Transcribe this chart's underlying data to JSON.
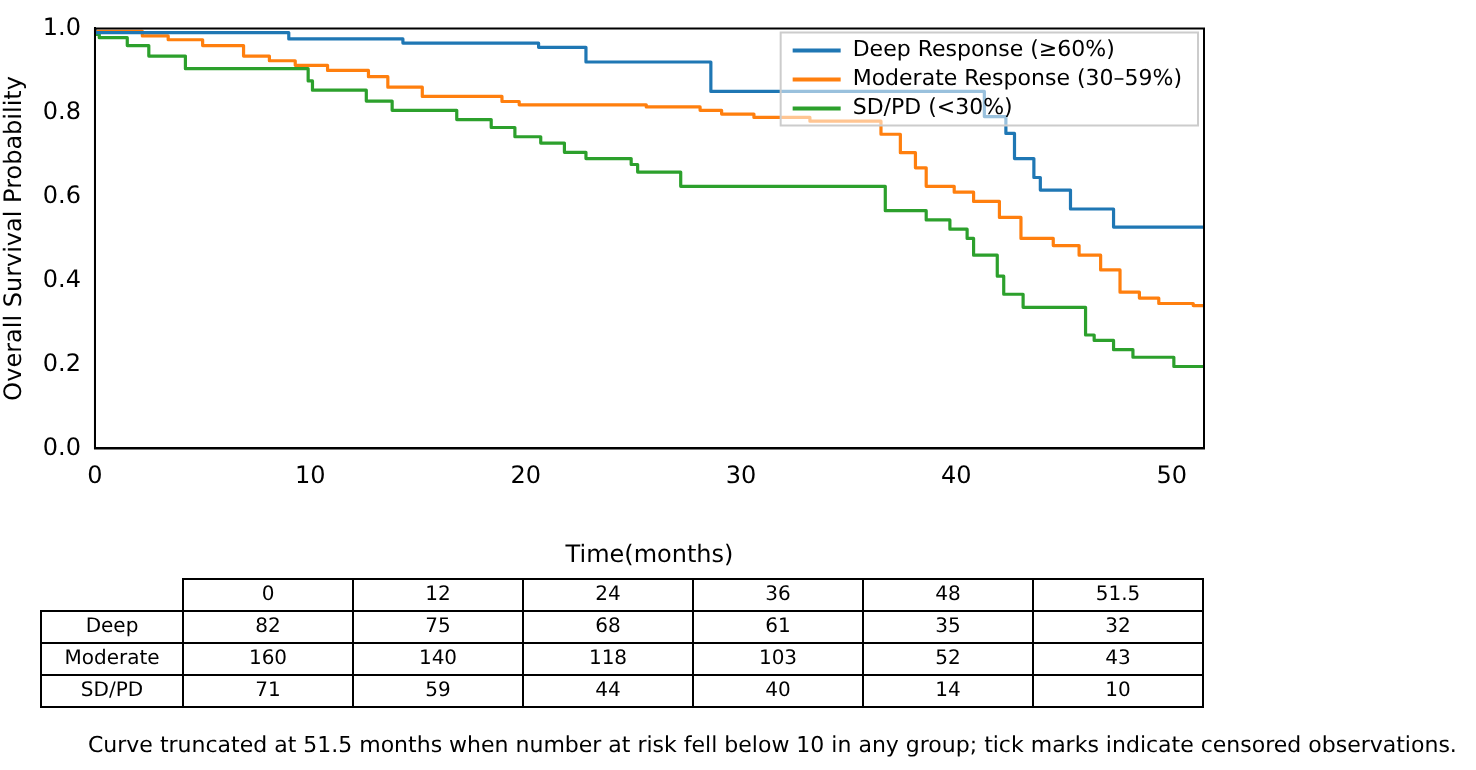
{
  "chart_data": [
    {
      "type": "step",
      "xlabel": "Time(months)",
      "ylabel": "Overall Survival Probability",
      "xlim": [
        0,
        51.5
      ],
      "xticks": [
        0,
        10,
        20,
        30,
        40,
        50
      ],
      "ylim": [
        0,
        1
      ],
      "yticks": [
        {
          "value": 0,
          "label": "0.0"
        },
        {
          "value": 0.2,
          "label": "0.2"
        },
        {
          "value": 0.4,
          "label": "0.4"
        },
        {
          "value": 0.6,
          "label": "0.6"
        },
        {
          "value": 0.8,
          "label": "0.8"
        },
        {
          "value": 1,
          "label": "1.0"
        }
      ],
      "grid": false,
      "legend": "top right",
      "annotations": [
        "Curve truncated at 51.5 months when number at risk fell below 10 in any group; tick marks indicate censored observations."
      ],
      "series": [
        {
          "name": "Deep Response (≥60%)",
          "color": "#1f77b4",
          "x": [
            0,
            9.0,
            14.3,
            20.6,
            22.8,
            28.6,
            41.3,
            42.3,
            42.7,
            43.6,
            43.9,
            45.3,
            47.3,
            50.1,
            51.5
          ],
          "values": [
            1.0,
            0.99,
            0.975,
            0.965,
            0.955,
            0.92,
            0.85,
            0.79,
            0.75,
            0.69,
            0.645,
            0.615,
            0.57,
            0.527,
            0.527
          ]
        },
        {
          "name": "Moderate Response (30–59%)",
          "color": "#ff7f0e",
          "x": [
            0,
            2.2,
            3.4,
            5.0,
            6.9,
            8.1,
            9.3,
            10.8,
            12.7,
            13.6,
            15.2,
            18.9,
            19.7,
            25.6,
            28.1,
            29.1,
            30.6,
            33.2,
            36.5,
            37.4,
            38.1,
            38.6,
            39.9,
            40.8,
            42.0,
            43.0,
            44.5,
            45.7,
            46.7,
            47.6,
            48.5,
            49.4,
            51.0,
            51.5
          ],
          "values": [
            1.0,
            0.993,
            0.982,
            0.973,
            0.959,
            0.934,
            0.923,
            0.912,
            0.9,
            0.885,
            0.86,
            0.838,
            0.826,
            0.818,
            0.813,
            0.805,
            0.796,
            0.788,
            0.779,
            0.748,
            0.704,
            0.668,
            0.624,
            0.61,
            0.588,
            0.55,
            0.5,
            0.483,
            0.46,
            0.425,
            0.372,
            0.358,
            0.345,
            0.34
          ]
        },
        {
          "name": "SD/PD (<30%)",
          "color": "#2ca02c",
          "x": [
            0,
            0.2,
            1.5,
            2.5,
            4.2,
            9.9,
            10.1,
            12.6,
            13.8,
            16.8,
            18.4,
            19.5,
            20.7,
            21.8,
            22.8,
            24.9,
            25.2,
            27.2,
            36.7,
            38.6,
            39.7,
            40.5,
            40.8,
            41.9,
            42.2,
            43.1,
            46.0,
            46.4,
            47.3,
            48.2,
            50.1,
            51.5
          ],
          "values": [
            1.0,
            0.986,
            0.978,
            0.959,
            0.934,
            0.904,
            0.875,
            0.853,
            0.827,
            0.805,
            0.783,
            0.764,
            0.742,
            0.727,
            0.705,
            0.69,
            0.676,
            0.658,
            0.624,
            0.566,
            0.544,
            0.522,
            0.5,
            0.46,
            0.41,
            0.367,
            0.336,
            0.27,
            0.257,
            0.235,
            0.217,
            0.195
          ]
        }
      ]
    },
    {
      "type": "heatmap",
      "data_labels": true,
      "categories": [
        "0",
        "12",
        "24",
        "36",
        "48",
        "51.5"
      ],
      "y_categories": [
        "Deep",
        "Moderate",
        "SD/PD"
      ],
      "cells": [
        [
          82,
          75,
          68,
          61,
          35,
          32
        ],
        [
          160,
          140,
          118,
          103,
          52,
          43
        ],
        [
          71,
          59,
          44,
          40,
          14,
          10
        ]
      ]
    }
  ]
}
